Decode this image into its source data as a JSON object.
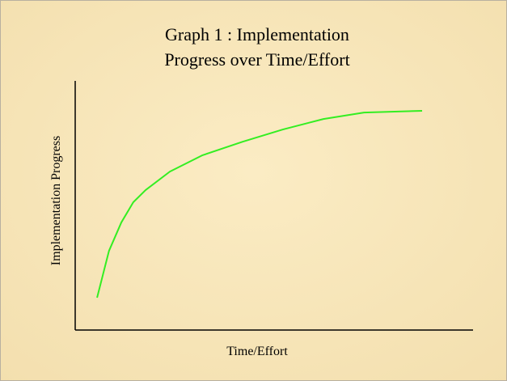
{
  "chart_data": {
    "type": "line",
    "title": [
      "Graph 1 : Implementation",
      "Progress over Time/Effort"
    ],
    "x_label": "Time/Effort",
    "y_label": "Implementation Progress",
    "xlim": [
      0,
      100
    ],
    "ylim": [
      0,
      100
    ],
    "series": [
      {
        "name": null,
        "color": "#33ee22",
        "x": [
          5.5,
          8.5,
          11.6,
          14.6,
          17.7,
          23.8,
          31.9,
          42.1,
          52.2,
          62.4,
          72.6,
          87.2
        ],
        "values": [
          13,
          31.8,
          43.2,
          51.3,
          56.2,
          63.6,
          70.1,
          75.6,
          80.5,
          84.7,
          87.3,
          88
        ]
      }
    ]
  }
}
